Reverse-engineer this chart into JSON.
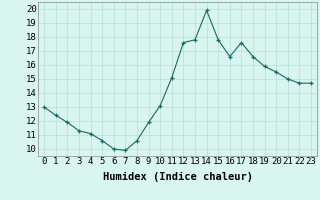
{
  "x": [
    0,
    1,
    2,
    3,
    4,
    5,
    6,
    7,
    8,
    9,
    10,
    11,
    12,
    13,
    14,
    15,
    16,
    17,
    18,
    19,
    20,
    21,
    22,
    23
  ],
  "y": [
    13,
    12.4,
    11.9,
    11.3,
    11.1,
    10.6,
    10.0,
    9.9,
    10.6,
    11.9,
    13.1,
    15.1,
    17.6,
    17.8,
    19.9,
    17.8,
    16.6,
    17.6,
    16.6,
    15.9,
    15.5,
    15.0,
    14.7,
    14.7
  ],
  "line_color": "#1a6b5a",
  "marker_color": "#1a6b5a",
  "bg_color": "#d8f5f0",
  "grid_color": "#b8ddd8",
  "grid_minor_color": "#e0f0ee",
  "xlabel": "Humidex (Indice chaleur)",
  "yticks": [
    10,
    11,
    12,
    13,
    14,
    15,
    16,
    17,
    18,
    19,
    20
  ],
  "xlim": [
    -0.5,
    23.5
  ],
  "ylim": [
    9.5,
    20.5
  ],
  "xlabel_fontsize": 7.5,
  "tick_fontsize": 6.5
}
